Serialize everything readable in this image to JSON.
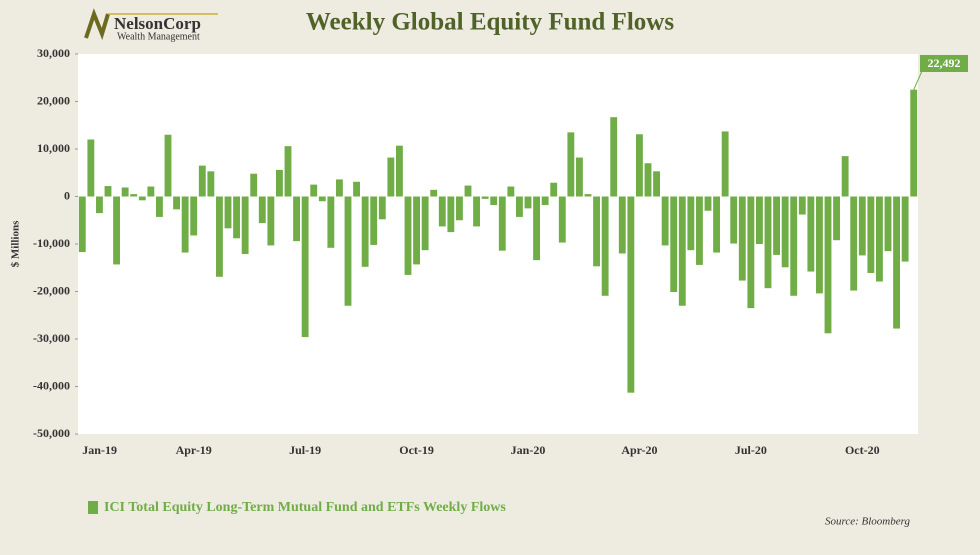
{
  "logo": {
    "name": "NelsonCorp",
    "tagline": "Wealth Management"
  },
  "chart_data": {
    "type": "bar",
    "title": "Weekly Global Equity Fund Flows",
    "y_label": "$ Millions",
    "source": "Source: Bloomberg",
    "categories": [
      "Jan-19",
      null,
      null,
      null,
      null,
      null,
      null,
      null,
      null,
      null,
      null,
      null,
      null,
      "Apr-19",
      null,
      null,
      null,
      null,
      null,
      null,
      null,
      null,
      null,
      null,
      null,
      null,
      "Jul-19",
      null,
      null,
      null,
      null,
      null,
      null,
      null,
      null,
      null,
      null,
      null,
      null,
      "Oct-19",
      null,
      null,
      null,
      null,
      null,
      null,
      null,
      null,
      null,
      null,
      null,
      null,
      "Jan-20",
      null,
      null,
      null,
      null,
      null,
      null,
      null,
      null,
      null,
      null,
      null,
      null,
      "Apr-20",
      null,
      null,
      null,
      null,
      null,
      null,
      null,
      null,
      null,
      null,
      null,
      null,
      "Jul-20",
      null,
      null,
      null,
      null,
      null,
      null,
      null,
      null,
      null,
      null,
      null,
      null,
      "Oct-20",
      null,
      null,
      null,
      null,
      null,
      null
    ],
    "series": [
      {
        "name": "ICI Total Equity Long-Term Mutual Fund and ETFs Weekly Flows",
        "color": "#70ad47",
        "values": [
          -11700,
          12000,
          -3500,
          2200,
          -14300,
          1900,
          500,
          -800,
          2100,
          -4300,
          13000,
          -2700,
          -11800,
          -8200,
          6500,
          5300,
          -16900,
          -6700,
          -8800,
          -12100,
          4800,
          -5600,
          -10300,
          5600,
          10600,
          -9400,
          -29600,
          2500,
          -1000,
          -10800,
          3600,
          -23000,
          3100,
          -14800,
          -10200,
          -4800,
          8200,
          10700,
          -16500,
          -14300,
          -11300,
          1400,
          -6300,
          -7500,
          -5000,
          2300,
          -6300,
          -500,
          -1800,
          -11400,
          2100,
          -4300,
          -2500,
          -13400,
          -1800,
          2900,
          -9700,
          13500,
          8200,
          500,
          -14700,
          -20900,
          16700,
          -12000,
          -41300,
          13100,
          7000,
          5300,
          -10300,
          -20100,
          -23000,
          -11300,
          -14400,
          -3000,
          -11800,
          13700,
          -9900,
          -17700,
          -23500,
          -10000,
          -19300,
          -12300,
          -14900,
          -20900,
          -3800,
          -15800,
          -20400,
          -28800,
          -9200,
          8500,
          -19800,
          -12400,
          -16100,
          -17900,
          -11500,
          -27800,
          -13700,
          22492
        ],
        "value_labels": [
          null,
          null,
          null,
          null,
          null,
          null,
          null,
          null,
          null,
          null,
          null,
          null,
          null,
          null,
          null,
          null,
          null,
          null,
          null,
          null,
          null,
          null,
          null,
          null,
          null,
          null,
          null,
          null,
          null,
          null,
          null,
          null,
          null,
          null,
          null,
          null,
          null,
          null,
          null,
          null,
          null,
          null,
          null,
          null,
          null,
          null,
          null,
          null,
          null,
          null,
          null,
          null,
          null,
          null,
          null,
          null,
          null,
          null,
          null,
          null,
          null,
          null,
          null,
          null,
          null,
          null,
          null,
          null,
          null,
          null,
          null,
          null,
          null,
          null,
          null,
          null,
          null,
          null,
          null,
          null,
          null,
          null,
          null,
          null,
          null,
          null,
          null,
          null,
          null,
          null,
          null,
          null,
          null,
          null,
          null,
          null,
          null,
          "22,492"
        ]
      }
    ],
    "ylim": [
      -50000,
      30000
    ],
    "yticks": [
      {
        "value": -50000,
        "label": "-50,000"
      },
      {
        "value": -40000,
        "label": "-40,000"
      },
      {
        "value": -30000,
        "label": "-30,000"
      },
      {
        "value": -20000,
        "label": "-20,000"
      },
      {
        "value": -10000,
        "label": "-10,000"
      },
      0,
      {
        "value": 10000,
        "label": "10,000"
      },
      {
        "value": 20000,
        "label": "20,000"
      },
      {
        "value": 30000,
        "label": "30,000"
      }
    ],
    "grid": false,
    "legend": "bottom-left"
  }
}
